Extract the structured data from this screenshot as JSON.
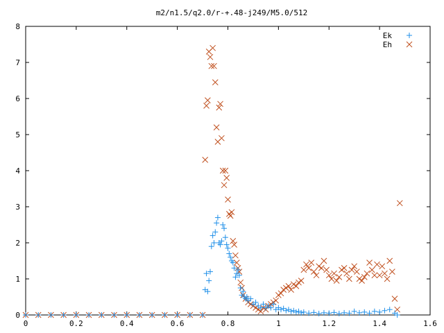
{
  "chart_data": {
    "type": "scatter",
    "title": "m2/n1.5/q2.0/r-+.48-j249/M5.0/512",
    "xlabel": "",
    "ylabel": "",
    "xlim": [
      0,
      1.6
    ],
    "ylim": [
      0,
      8
    ],
    "grid": false,
    "legend_position": "top-right",
    "x_ticks": [
      "0",
      "0.2",
      "0.4",
      "0.6",
      "0.8",
      "1",
      "1.2",
      "1.4",
      "1.6"
    ],
    "y_ticks": [
      "0",
      "1",
      "2",
      "3",
      "4",
      "5",
      "6",
      "7",
      "8"
    ],
    "series": [
      {
        "name": "Ek",
        "marker": "plus",
        "color": "#1f8fe8",
        "points": [
          [
            0.0,
            0.0
          ],
          [
            0.05,
            0.0
          ],
          [
            0.1,
            0.0
          ],
          [
            0.15,
            0.0
          ],
          [
            0.2,
            0.0
          ],
          [
            0.25,
            0.0
          ],
          [
            0.3,
            0.0
          ],
          [
            0.35,
            0.0
          ],
          [
            0.4,
            0.0
          ],
          [
            0.45,
            0.0
          ],
          [
            0.5,
            0.0
          ],
          [
            0.55,
            0.0
          ],
          [
            0.6,
            0.0
          ],
          [
            0.65,
            0.0
          ],
          [
            0.7,
            0.0
          ],
          [
            0.71,
            0.7
          ],
          [
            0.715,
            1.15
          ],
          [
            0.72,
            0.65
          ],
          [
            0.725,
            0.95
          ],
          [
            0.73,
            1.2
          ],
          [
            0.735,
            1.9
          ],
          [
            0.74,
            2.2
          ],
          [
            0.745,
            2.0
          ],
          [
            0.75,
            2.3
          ],
          [
            0.755,
            2.55
          ],
          [
            0.76,
            2.7
          ],
          [
            0.765,
            2.0
          ],
          [
            0.77,
            1.95
          ],
          [
            0.775,
            2.05
          ],
          [
            0.78,
            2.5
          ],
          [
            0.785,
            2.4
          ],
          [
            0.79,
            2.15
          ],
          [
            0.795,
            1.95
          ],
          [
            0.8,
            1.85
          ],
          [
            0.805,
            1.7
          ],
          [
            0.81,
            1.6
          ],
          [
            0.815,
            1.5
          ],
          [
            0.82,
            1.45
          ],
          [
            0.825,
            1.3
          ],
          [
            0.83,
            1.05
          ],
          [
            0.835,
            1.15
          ],
          [
            0.84,
            1.25
          ],
          [
            0.845,
            1.1
          ],
          [
            0.85,
            0.75
          ],
          [
            0.855,
            0.55
          ],
          [
            0.86,
            0.65
          ],
          [
            0.865,
            0.5
          ],
          [
            0.87,
            0.45
          ],
          [
            0.875,
            0.5
          ],
          [
            0.88,
            0.4
          ],
          [
            0.89,
            0.45
          ],
          [
            0.9,
            0.3
          ],
          [
            0.91,
            0.35
          ],
          [
            0.92,
            0.25
          ],
          [
            0.93,
            0.2
          ],
          [
            0.94,
            0.3
          ],
          [
            0.95,
            0.2
          ],
          [
            0.96,
            0.25
          ],
          [
            0.97,
            0.2
          ],
          [
            0.98,
            0.3
          ],
          [
            0.99,
            0.15
          ],
          [
            1.0,
            0.2
          ],
          [
            1.01,
            0.15
          ],
          [
            1.02,
            0.18
          ],
          [
            1.03,
            0.12
          ],
          [
            1.04,
            0.15
          ],
          [
            1.05,
            0.1
          ],
          [
            1.06,
            0.12
          ],
          [
            1.07,
            0.08
          ],
          [
            1.08,
            0.1
          ],
          [
            1.09,
            0.06
          ],
          [
            1.1,
            0.08
          ],
          [
            1.12,
            0.05
          ],
          [
            1.14,
            0.07
          ],
          [
            1.16,
            0.04
          ],
          [
            1.18,
            0.06
          ],
          [
            1.2,
            0.05
          ],
          [
            1.22,
            0.07
          ],
          [
            1.24,
            0.04
          ],
          [
            1.26,
            0.06
          ],
          [
            1.28,
            0.05
          ],
          [
            1.3,
            0.1
          ],
          [
            1.32,
            0.06
          ],
          [
            1.34,
            0.08
          ],
          [
            1.36,
            0.05
          ],
          [
            1.38,
            0.1
          ],
          [
            1.4,
            0.08
          ],
          [
            1.42,
            0.12
          ],
          [
            1.44,
            0.15
          ],
          [
            1.46,
            0.05
          ],
          [
            1.47,
            0.0
          ]
        ]
      },
      {
        "name": "Eh",
        "marker": "cross",
        "color": "#c0501f",
        "points": [
          [
            0.0,
            0.0
          ],
          [
            0.05,
            0.0
          ],
          [
            0.1,
            0.0
          ],
          [
            0.15,
            0.0
          ],
          [
            0.2,
            0.0
          ],
          [
            0.25,
            0.0
          ],
          [
            0.3,
            0.0
          ],
          [
            0.35,
            0.0
          ],
          [
            0.4,
            0.0
          ],
          [
            0.45,
            0.0
          ],
          [
            0.5,
            0.0
          ],
          [
            0.55,
            0.0
          ],
          [
            0.6,
            0.0
          ],
          [
            0.65,
            0.0
          ],
          [
            0.7,
            0.0
          ],
          [
            0.71,
            4.3
          ],
          [
            0.715,
            5.8
          ],
          [
            0.72,
            5.95
          ],
          [
            0.725,
            7.3
          ],
          [
            0.73,
            7.15
          ],
          [
            0.735,
            6.9
          ],
          [
            0.74,
            7.4
          ],
          [
            0.745,
            6.9
          ],
          [
            0.75,
            6.45
          ],
          [
            0.755,
            5.2
          ],
          [
            0.76,
            4.8
          ],
          [
            0.765,
            5.75
          ],
          [
            0.77,
            5.85
          ],
          [
            0.775,
            4.9
          ],
          [
            0.78,
            4.0
          ],
          [
            0.785,
            3.6
          ],
          [
            0.79,
            4.0
          ],
          [
            0.795,
            3.8
          ],
          [
            0.8,
            3.2
          ],
          [
            0.805,
            2.8
          ],
          [
            0.81,
            2.75
          ],
          [
            0.815,
            2.85
          ],
          [
            0.82,
            2.05
          ],
          [
            0.825,
            1.95
          ],
          [
            0.83,
            1.65
          ],
          [
            0.835,
            1.45
          ],
          [
            0.84,
            1.3
          ],
          [
            0.845,
            1.2
          ],
          [
            0.85,
            0.9
          ],
          [
            0.855,
            0.75
          ],
          [
            0.86,
            0.55
          ],
          [
            0.87,
            0.45
          ],
          [
            0.88,
            0.35
          ],
          [
            0.89,
            0.3
          ],
          [
            0.9,
            0.25
          ],
          [
            0.91,
            0.2
          ],
          [
            0.92,
            0.15
          ],
          [
            0.93,
            0.1
          ],
          [
            0.94,
            0.2
          ],
          [
            0.95,
            0.15
          ],
          [
            0.96,
            0.25
          ],
          [
            0.97,
            0.3
          ],
          [
            0.98,
            0.35
          ],
          [
            0.99,
            0.4
          ],
          [
            1.0,
            0.55
          ],
          [
            1.01,
            0.6
          ],
          [
            1.02,
            0.7
          ],
          [
            1.03,
            0.75
          ],
          [
            1.04,
            0.8
          ],
          [
            1.05,
            0.7
          ],
          [
            1.06,
            0.85
          ],
          [
            1.07,
            0.8
          ],
          [
            1.08,
            0.9
          ],
          [
            1.09,
            0.95
          ],
          [
            1.1,
            1.25
          ],
          [
            1.11,
            1.4
          ],
          [
            1.12,
            1.3
          ],
          [
            1.13,
            1.45
          ],
          [
            1.14,
            1.2
          ],
          [
            1.15,
            1.1
          ],
          [
            1.16,
            1.35
          ],
          [
            1.17,
            1.3
          ],
          [
            1.18,
            1.5
          ],
          [
            1.19,
            1.25
          ],
          [
            1.2,
            1.1
          ],
          [
            1.21,
            1.0
          ],
          [
            1.22,
            1.15
          ],
          [
            1.23,
            0.95
          ],
          [
            1.24,
            1.05
          ],
          [
            1.25,
            1.25
          ],
          [
            1.26,
            1.3
          ],
          [
            1.27,
            1.15
          ],
          [
            1.28,
            1.0
          ],
          [
            1.29,
            1.25
          ],
          [
            1.3,
            1.35
          ],
          [
            1.31,
            1.2
          ],
          [
            1.32,
            1.0
          ],
          [
            1.33,
            0.95
          ],
          [
            1.34,
            1.05
          ],
          [
            1.35,
            1.15
          ],
          [
            1.36,
            1.45
          ],
          [
            1.37,
            1.25
          ],
          [
            1.38,
            1.1
          ],
          [
            1.39,
            1.4
          ],
          [
            1.4,
            1.1
          ],
          [
            1.41,
            1.35
          ],
          [
            1.42,
            1.15
          ],
          [
            1.43,
            1.0
          ],
          [
            1.44,
            1.5
          ],
          [
            1.45,
            1.2
          ],
          [
            1.46,
            0.45
          ],
          [
            1.47,
            0.15
          ],
          [
            1.48,
            3.1
          ]
        ]
      }
    ]
  }
}
